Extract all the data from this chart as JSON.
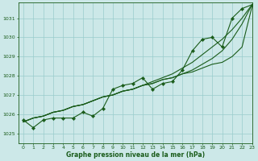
{
  "title": "Graphe pression niveau de la mer (hPa)",
  "background_color": "#cce8e8",
  "grid_color": "#99cccc",
  "line_color": "#1a5c1a",
  "xlim": [
    -0.5,
    23
  ],
  "ylim": [
    1024.5,
    1031.8
  ],
  "yticks": [
    1025,
    1026,
    1027,
    1028,
    1029,
    1030,
    1031
  ],
  "xticks": [
    0,
    1,
    2,
    3,
    4,
    5,
    6,
    7,
    8,
    9,
    10,
    11,
    12,
    13,
    14,
    15,
    16,
    17,
    18,
    19,
    20,
    21,
    22,
    23
  ],
  "hours": [
    0,
    1,
    2,
    3,
    4,
    5,
    6,
    7,
    8,
    9,
    10,
    11,
    12,
    13,
    14,
    15,
    16,
    17,
    18,
    19,
    20,
    21,
    22,
    23
  ],
  "line_straight1": [
    1025.6,
    1025.8,
    1025.9,
    1026.1,
    1026.2,
    1026.4,
    1026.5,
    1026.7,
    1026.9,
    1027.0,
    1027.2,
    1027.3,
    1027.5,
    1027.6,
    1027.8,
    1027.9,
    1028.1,
    1028.2,
    1028.4,
    1028.6,
    1028.7,
    1029.0,
    1029.5,
    1031.6
  ],
  "line_straight2": [
    1025.6,
    1025.8,
    1025.9,
    1026.1,
    1026.2,
    1026.4,
    1026.5,
    1026.7,
    1026.9,
    1027.0,
    1027.2,
    1027.3,
    1027.5,
    1027.6,
    1027.8,
    1027.9,
    1028.1,
    1028.3,
    1028.6,
    1028.9,
    1029.3,
    1029.9,
    1030.7,
    1031.7
  ],
  "line_straight3": [
    1025.6,
    1025.8,
    1025.9,
    1026.1,
    1026.2,
    1026.4,
    1026.5,
    1026.7,
    1026.9,
    1027.0,
    1027.2,
    1027.3,
    1027.5,
    1027.7,
    1027.9,
    1028.1,
    1028.4,
    1028.7,
    1029.1,
    1029.5,
    1029.9,
    1030.4,
    1031.0,
    1031.7
  ],
  "line_measured": [
    1025.7,
    1025.3,
    1025.7,
    1025.8,
    1025.8,
    1025.8,
    1026.1,
    1025.9,
    1026.3,
    1027.3,
    1027.5,
    1027.6,
    1027.9,
    1027.3,
    1027.6,
    1027.7,
    1028.3,
    1029.3,
    1029.9,
    1030.0,
    1029.5,
    1031.0,
    1031.5,
    1031.7
  ]
}
